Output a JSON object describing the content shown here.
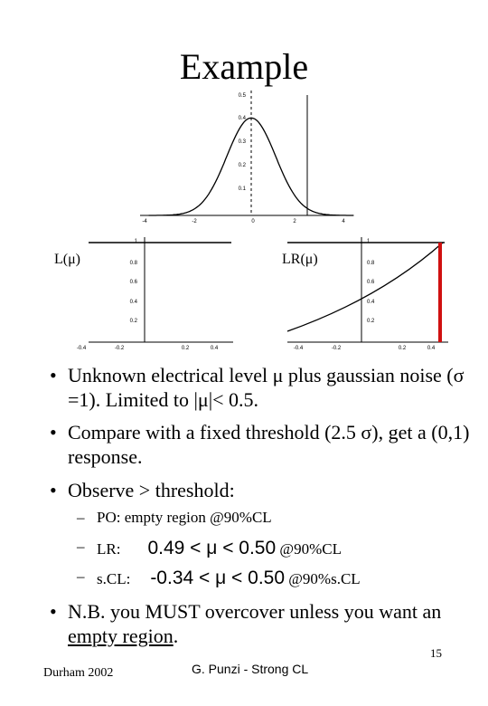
{
  "title": "Example",
  "plots": {
    "top": {
      "xticks": [
        "-4",
        "-2",
        "0",
        "2",
        "4"
      ],
      "yticks": [
        "0.5",
        "0.4",
        "0.3",
        "0.2",
        "0.1"
      ]
    },
    "left": {
      "label": "L(μ)",
      "xticks": [
        "-0.4",
        "-0.2",
        "0.2",
        "0.4"
      ],
      "yticks": [
        "1",
        "0.8",
        "0.6",
        "0.4",
        "0.2"
      ]
    },
    "right": {
      "label": "LR(μ)",
      "xticks": [
        "-0.4",
        "-0.2",
        "0.2",
        "0.4"
      ],
      "yticks": [
        "1",
        "0.8",
        "0.6",
        "0.4",
        "0.2"
      ]
    }
  },
  "bullets": [
    "Unknown electrical level μ plus gaussian noise (σ =1). Limited to |μ|< 0.5.",
    "Compare with a fixed threshold (2.5 σ), get a (0,1) response.",
    "Observe > threshold:"
  ],
  "sub_items": [
    {
      "label": "PO: empty region @90%CL"
    },
    {
      "label": "LR:",
      "range": "0.49 < μ < 0.50",
      "cl": "@90%CL"
    },
    {
      "label": "s.CL:",
      "range": "-0.34 < μ < 0.50",
      "cl": "@90%s.CL"
    }
  ],
  "note": {
    "text": "N.B. you MUST overcover unless you want an ",
    "underlined": "empty region",
    "end": "."
  },
  "footer": {
    "left": "Durham 2002",
    "center": "G. Punzi - Strong CL",
    "page": "15"
  }
}
